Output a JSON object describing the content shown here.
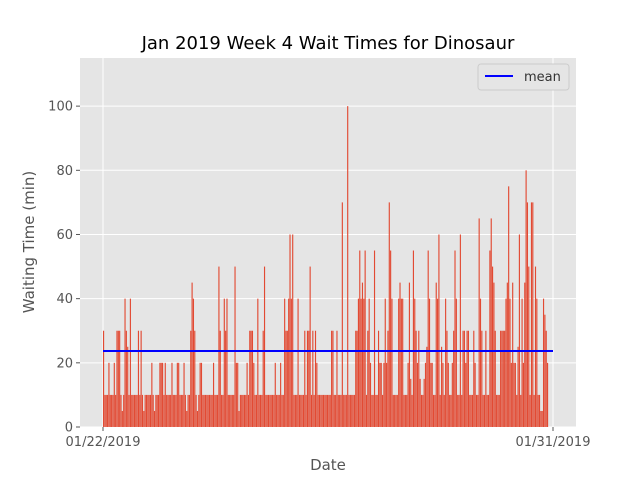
{
  "chart_data": {
    "type": "bar",
    "title": "Jan 2019 Week 4 Wait Times for Dinosaur",
    "xlabel": "Date",
    "ylabel": "Waiting Time (min)",
    "x_tick_labels": [
      "01/22/2019",
      "01/31/2019"
    ],
    "x_range": [
      "01/22/2019",
      "01/31/2019"
    ],
    "ylim": [
      0,
      115
    ],
    "y_ticks": [
      0,
      20,
      40,
      60,
      80,
      100
    ],
    "grid": true,
    "legend_position": "top-right",
    "colors": {
      "bars": "#E24A33",
      "mean": "#0000FF",
      "plot_background": "#E5E5E5",
      "grid": "#FFFFFF"
    },
    "series": [
      {
        "name": "",
        "style": "bars",
        "values": [
          30,
          10,
          10,
          10,
          20,
          10,
          10,
          10,
          20,
          10,
          30,
          30,
          30,
          10,
          5,
          10,
          40,
          30,
          25,
          10,
          40,
          10,
          10,
          10,
          10,
          10,
          30,
          10,
          30,
          10,
          5,
          10,
          10,
          10,
          10,
          10,
          20,
          10,
          5,
          10,
          10,
          10,
          20,
          20,
          20,
          10,
          20,
          10,
          10,
          10,
          10,
          20,
          10,
          10,
          10,
          20,
          20,
          10,
          10,
          10,
          20,
          10,
          5,
          10,
          10,
          30,
          45,
          40,
          30,
          10,
          5,
          10,
          20,
          20,
          10,
          10,
          10,
          10,
          10,
          10,
          10,
          10,
          20,
          10,
          10,
          10,
          50,
          30,
          10,
          10,
          40,
          30,
          40,
          10,
          10,
          10,
          10,
          10,
          50,
          20,
          20,
          5,
          10,
          10,
          10,
          10,
          10,
          20,
          10,
          30,
          30,
          30,
          20,
          10,
          10,
          40,
          10,
          10,
          10,
          30,
          50,
          10,
          10,
          10,
          10,
          10,
          10,
          10,
          20,
          10,
          10,
          10,
          20,
          10,
          10,
          40,
          30,
          30,
          40,
          60,
          40,
          60,
          10,
          10,
          10,
          40,
          10,
          10,
          10,
          10,
          30,
          10,
          30,
          30,
          50,
          10,
          30,
          10,
          30,
          20,
          10,
          10,
          10,
          10,
          10,
          10,
          10,
          10,
          10,
          10,
          30,
          30,
          10,
          10,
          30,
          10,
          10,
          10,
          70,
          10,
          10,
          10,
          100,
          10,
          10,
          10,
          10,
          10,
          30,
          30,
          40,
          55,
          40,
          45,
          40,
          55,
          10,
          30,
          40,
          20,
          10,
          10,
          55,
          10,
          10,
          30,
          20,
          20,
          10,
          20,
          40,
          20,
          30,
          70,
          55,
          40,
          10,
          10,
          10,
          10,
          40,
          45,
          40,
          40,
          10,
          10,
          10,
          20,
          45,
          15,
          10,
          55,
          40,
          30,
          20,
          30,
          15,
          10,
          10,
          15,
          20,
          25,
          55,
          40,
          20,
          20,
          10,
          10,
          45,
          40,
          60,
          10,
          25,
          20,
          10,
          40,
          30,
          20,
          10,
          10,
          20,
          30,
          55,
          40,
          10,
          10,
          60,
          10,
          30,
          30,
          20,
          30,
          30,
          10,
          10,
          10,
          30,
          20,
          10,
          10,
          65,
          40,
          30,
          10,
          10,
          30,
          10,
          10,
          55,
          65,
          50,
          45,
          30,
          10,
          10,
          10,
          30,
          30,
          30,
          30,
          40,
          45,
          75,
          40,
          20,
          45,
          20,
          20,
          10,
          25,
          60,
          10,
          40,
          20,
          45,
          80,
          70,
          50,
          10,
          70,
          70,
          10,
          50,
          40,
          10,
          10,
          5,
          5,
          40,
          35,
          30,
          20
        ]
      },
      {
        "name": "mean",
        "style": "line",
        "value": 23.7
      }
    ]
  }
}
